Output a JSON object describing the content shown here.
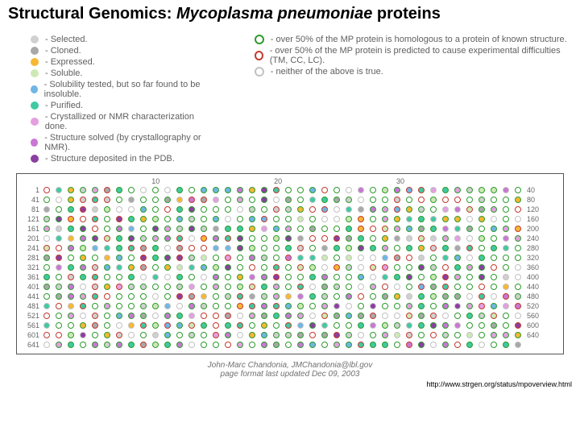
{
  "title": {
    "prefix": "Structural Genomics:",
    "organism": "Mycoplasma pneumoniae",
    "suffix": "proteins"
  },
  "status_legend": [
    {
      "label": "- Selected.",
      "fill": "#d0d0d0"
    },
    {
      "label": "- Cloned.",
      "fill": "#a8a8a8"
    },
    {
      "label": "- Expressed.",
      "fill": "#f7b733"
    },
    {
      "label": "- Soluble.",
      "fill": "#cde9b5"
    },
    {
      "label": "- Solubility tested, but so far found to be insoluble.",
      "fill": "#6fb6e5"
    },
    {
      "label": "- Purified.",
      "fill": "#40c9a2"
    },
    {
      "label": "- Crystallized or NMR characterization done.",
      "fill": "#e3a0e0"
    },
    {
      "label": "- Structure solved (by crystallography or NMR).",
      "fill": "#c977d4"
    },
    {
      "label": "- Structure deposited in the PDB.",
      "fill": "#8b3fa0"
    }
  ],
  "ring_legend": [
    {
      "label": "- over 50% of the MP protein is homologous to a protein of known structure.",
      "border": "#2e9b2e"
    },
    {
      "label": "- over 50% of the MP protein is predicted to cause experimental difficulties (TM, CC, LC).",
      "border": "#c43a2f"
    },
    {
      "label": "- neither of the above is true.",
      "border": "#c2c2c2"
    }
  ],
  "grid": {
    "cols": 40,
    "rows": 17,
    "top_ticks": {
      "10": "10",
      "20": "20",
      "30": "30"
    },
    "right_ticks": [
      "40",
      "80",
      "120",
      "160",
      "200",
      "240",
      "280",
      "320",
      "360",
      "400",
      "440",
      "480",
      "520",
      "560",
      "600",
      "640",
      ""
    ],
    "left_ticks": [
      "1",
      "41",
      "81",
      "121",
      "161",
      "201",
      "241",
      "281",
      "321",
      "361",
      "401",
      "441",
      "481",
      "521",
      "561",
      "601",
      "641"
    ],
    "cell_size": 10,
    "dot_size": 8,
    "ring_width": 1.5
  },
  "colors": {
    "rings": {
      "g": "#2e9b2e",
      "r": "#c43a2f",
      "n": "#c2c2c2"
    },
    "fills": {
      "sel": "#d0d0d0",
      "clo": "#a8a8a8",
      "exp": "#f7b733",
      "sol": "#cde9b5",
      "ins": "#6fb6e5",
      "pur": "#40c9a2",
      "cry": "#e3a0e0",
      "str": "#c977d4",
      "dep": "#8b3fa0",
      "none": "transparent"
    }
  },
  "footer": {
    "signature": "John-Marc Chandonia, JMChandonia@lbl.gov",
    "updated": "page format last updated Dec 09, 2003",
    "url": "http://www.strgen.org/status/mpoverview.html"
  }
}
